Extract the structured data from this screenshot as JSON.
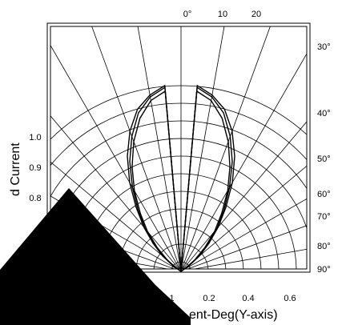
{
  "chart_data": {
    "type": "polar",
    "radial_axis": {
      "tick_labels": [
        "1.0",
        "0.9",
        "0.8"
      ]
    },
    "bottom_axis": {
      "tick_labels": [
        "0.1",
        "0.2",
        "0.4",
        "0.6"
      ]
    },
    "top_angle_labels": [
      "0°",
      "10",
      "20"
    ],
    "right_angle_labels": [
      "30°",
      "40°",
      "50°",
      "60°",
      "70°",
      "80°",
      "90°"
    ],
    "ylabel": "d Current",
    "xlabel": "ent-Deg(Y-axis)",
    "series": [
      {
        "points": [
          [
            0,
            0
          ],
          [
            5,
            0.97
          ],
          [
            10,
            0.93
          ],
          [
            15,
            0.85
          ],
          [
            20,
            0.74
          ],
          [
            25,
            0.62
          ],
          [
            30,
            0.5
          ],
          [
            35,
            0.38
          ],
          [
            40,
            0.28
          ],
          [
            45,
            0.18
          ],
          [
            50,
            0.1
          ],
          [
            55,
            0.04
          ],
          [
            60,
            0
          ]
        ]
      },
      {
        "points": [
          [
            0,
            0
          ],
          [
            5,
            0.99
          ],
          [
            10,
            0.95
          ],
          [
            15,
            0.88
          ],
          [
            20,
            0.77
          ],
          [
            25,
            0.65
          ],
          [
            30,
            0.52
          ],
          [
            35,
            0.4
          ],
          [
            40,
            0.3
          ],
          [
            45,
            0.2
          ],
          [
            50,
            0.12
          ],
          [
            55,
            0.05
          ],
          [
            60,
            0
          ]
        ]
      },
      {
        "points": [
          [
            0,
            0
          ],
          [
            5,
            1.0
          ],
          [
            10,
            0.96
          ],
          [
            15,
            0.9
          ],
          [
            20,
            0.8
          ],
          [
            25,
            0.68
          ],
          [
            30,
            0.55
          ],
          [
            35,
            0.42
          ],
          [
            40,
            0.31
          ],
          [
            45,
            0.21
          ],
          [
            50,
            0.13
          ],
          [
            55,
            0.05
          ],
          [
            60,
            0
          ]
        ]
      }
    ]
  }
}
